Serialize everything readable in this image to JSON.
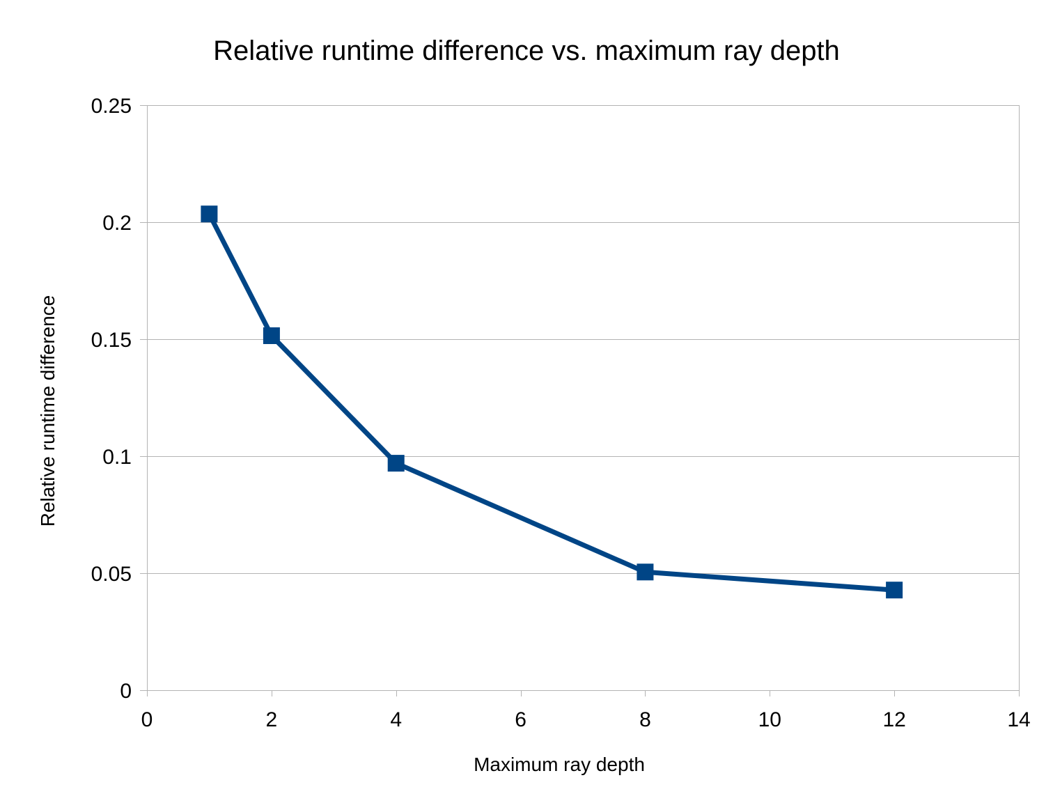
{
  "chart_data": {
    "type": "line",
    "title": "Relative runtime difference vs. maximum ray depth",
    "xlabel": "Maximum ray depth",
    "ylabel": "Relative runtime difference",
    "xlim": [
      0,
      14
    ],
    "ylim": [
      0,
      0.25
    ],
    "x_ticks": [
      "0",
      "2",
      "4",
      "6",
      "8",
      "10",
      "12",
      "14"
    ],
    "y_ticks": [
      "0",
      "0.05",
      "0.1",
      "0.15",
      "0.2",
      "0.25"
    ],
    "grid": "horizontal",
    "legend": "none",
    "series": [
      {
        "marker": "square",
        "color": "#004586",
        "x": [
          1,
          2,
          4,
          8,
          12
        ],
        "y": [
          0.2035,
          0.1515,
          0.097,
          0.0505,
          0.0428
        ]
      }
    ]
  },
  "colors": {
    "series": "#004586",
    "grid": "#b3b3b3",
    "background": "#ffffff"
  }
}
